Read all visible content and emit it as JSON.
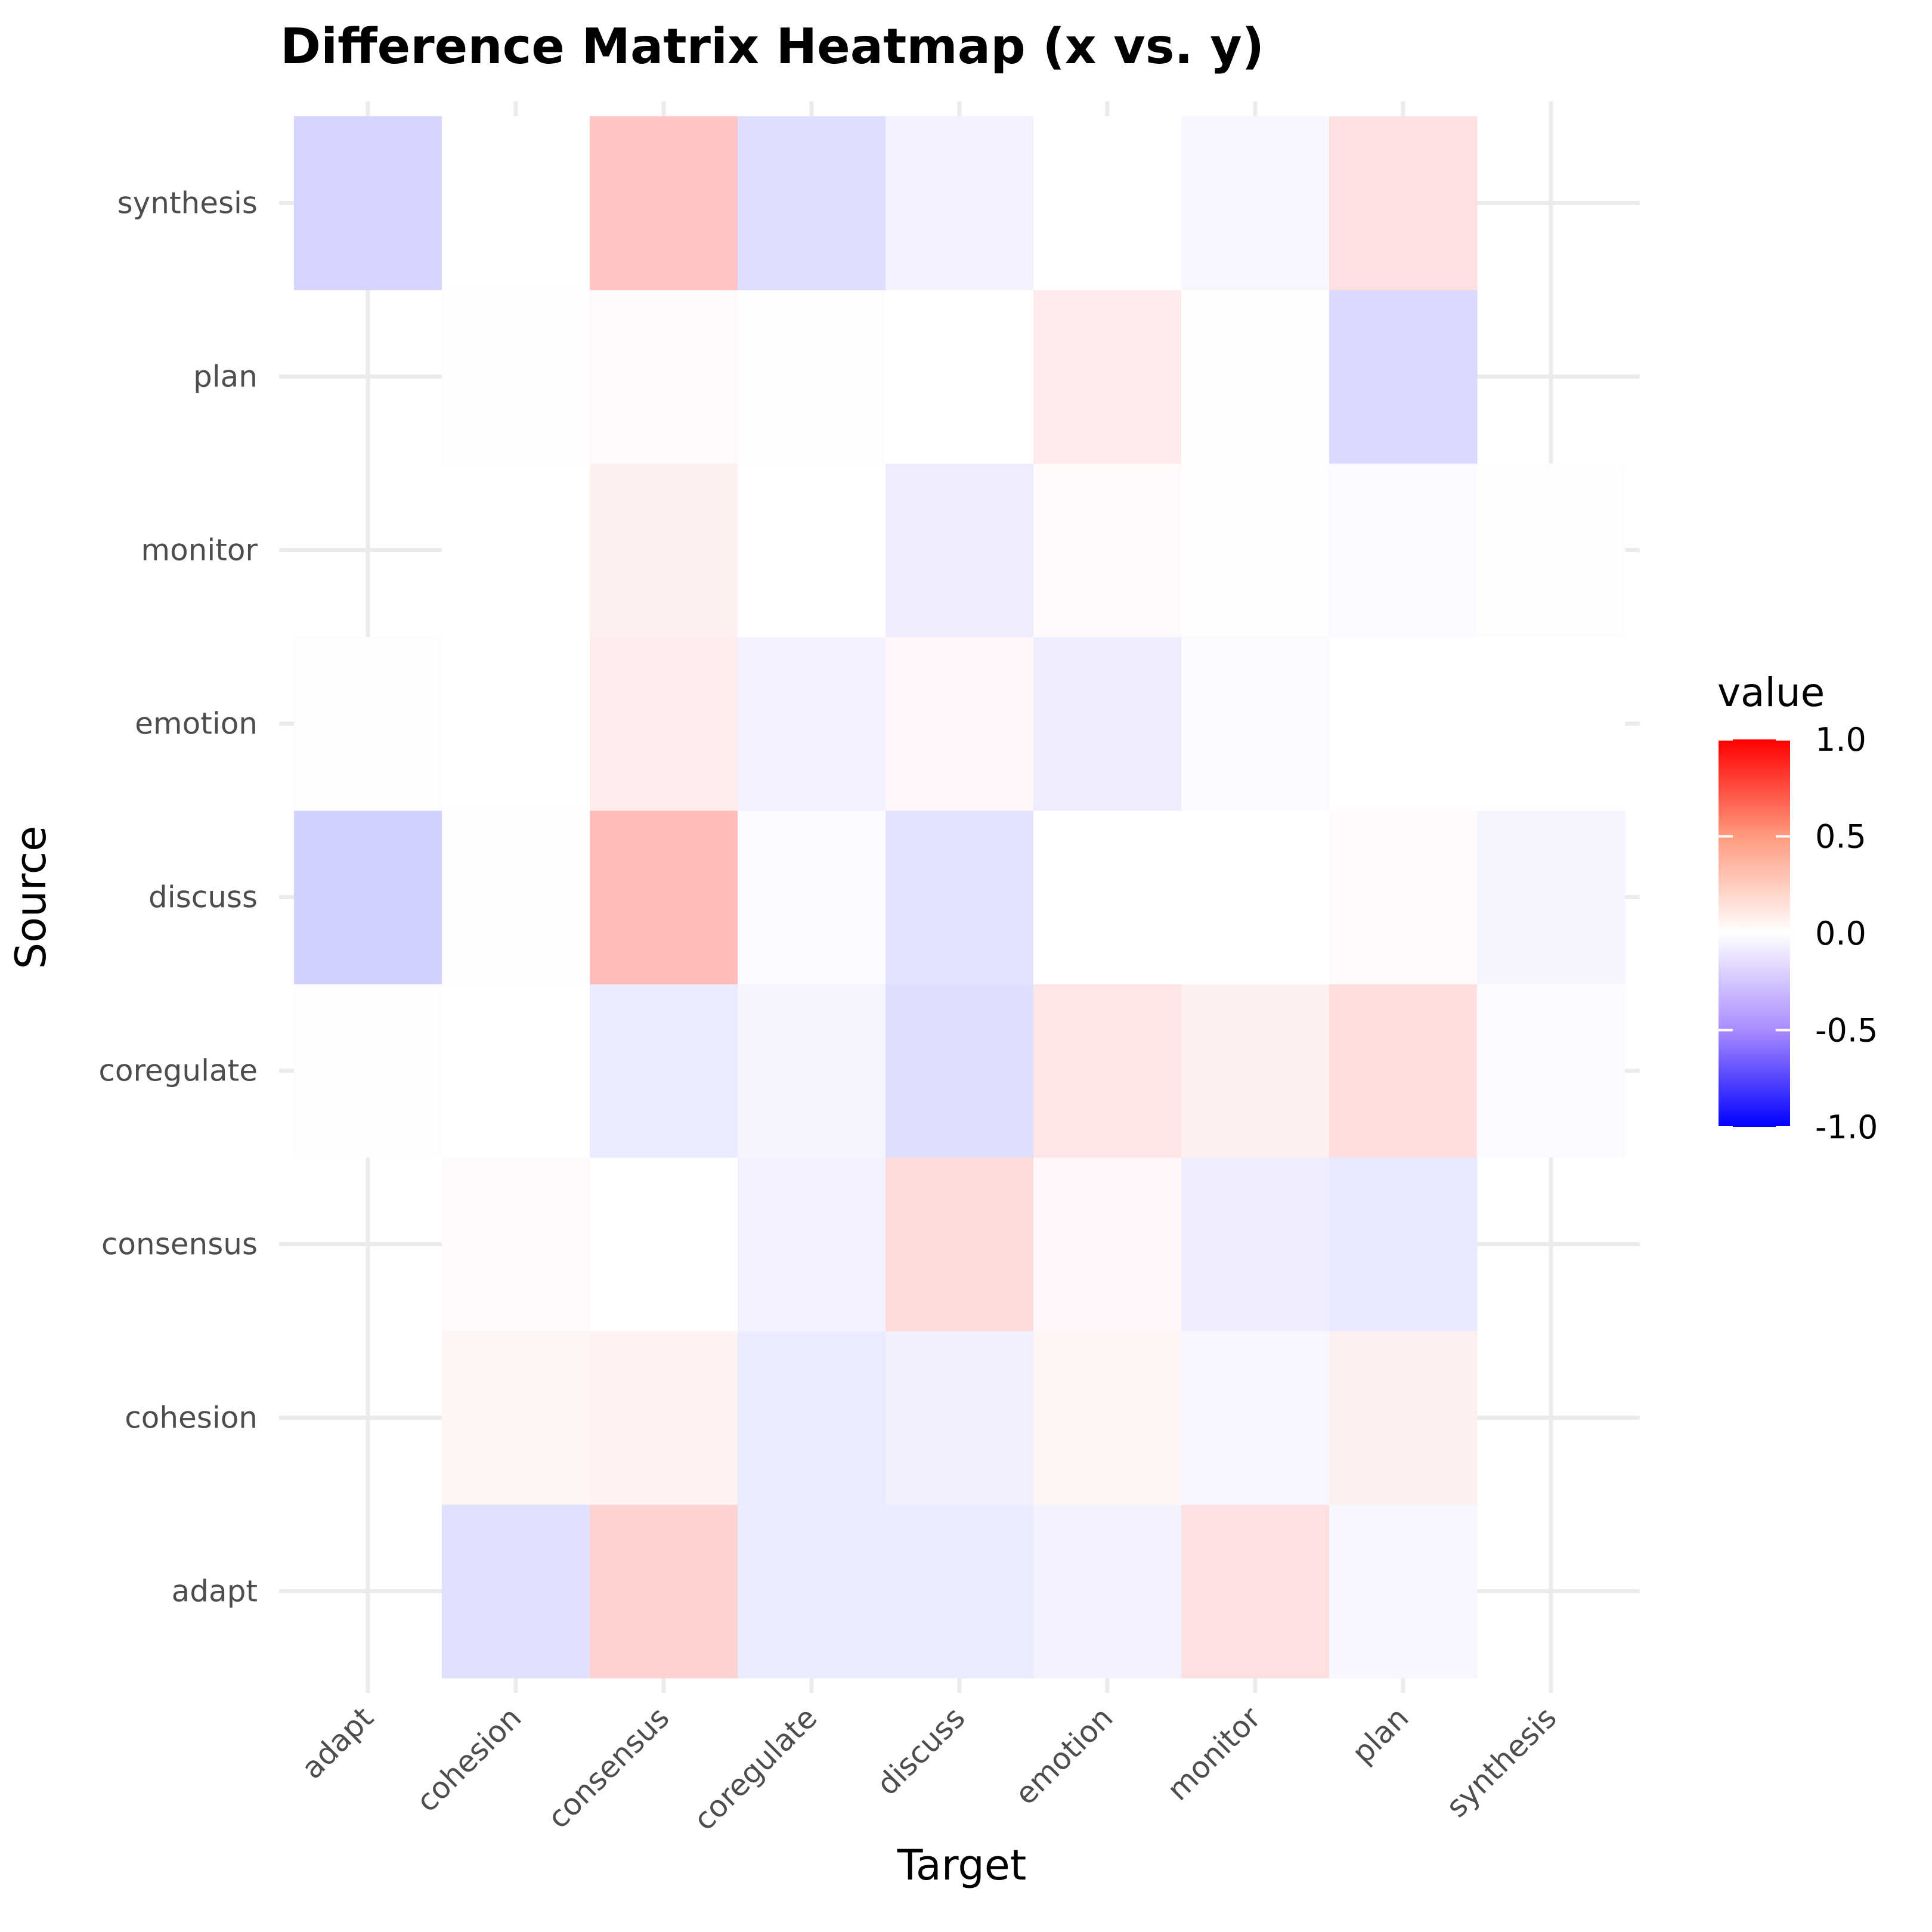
{
  "chart_data": {
    "type": "heatmap",
    "title": "Difference Matrix Heatmap (x vs. y)",
    "xlabel": "Target",
    "ylabel": "Source",
    "x_categories": [
      "adapt",
      "cohesion",
      "consensus",
      "coregulate",
      "discuss",
      "emotion",
      "monitor",
      "plan",
      "synthesis"
    ],
    "y_categories": [
      "adapt",
      "cohesion",
      "consensus",
      "coregulate",
      "discuss",
      "emotion",
      "monitor",
      "plan",
      "synthesis"
    ],
    "values": [
      [
        null,
        -0.12,
        0.18,
        -0.08,
        -0.08,
        -0.05,
        0.12,
        -0.03,
        null
      ],
      [
        null,
        0.04,
        0.05,
        -0.08,
        -0.06,
        0.04,
        -0.03,
        0.06,
        null
      ],
      [
        null,
        0.02,
        0.0,
        -0.05,
        0.14,
        0.03,
        -0.07,
        -0.09,
        null
      ],
      [
        0.01,
        0.0,
        -0.08,
        -0.04,
        -0.13,
        0.1,
        0.06,
        0.13,
        -0.02
      ],
      [
        -0.18,
        0.01,
        0.27,
        -0.02,
        -0.11,
        0.0,
        0.0,
        0.02,
        -0.04
      ],
      [
        0.01,
        0.0,
        0.07,
        -0.05,
        0.03,
        -0.07,
        -0.02,
        0.0,
        0.0
      ],
      [
        null,
        0.0,
        0.06,
        0.0,
        -0.07,
        0.02,
        0.01,
        -0.02,
        0.01
      ],
      [
        null,
        0.01,
        0.02,
        0.01,
        0.0,
        0.08,
        0.01,
        -0.15,
        null
      ],
      [
        -0.17,
        0.0,
        0.23,
        -0.13,
        -0.05,
        0.0,
        -0.03,
        0.12,
        null
      ]
    ],
    "color_scale": {
      "low": "#0000ff",
      "mid": "#ffffff",
      "high": "#ff0000",
      "limits": [
        -1,
        1
      ]
    },
    "legend": {
      "title": "value",
      "position": "right",
      "ticks": [
        {
          "value": 1.0,
          "label": "1.0"
        },
        {
          "value": 0.5,
          "label": "0.5"
        },
        {
          "value": 0.0,
          "label": "0.0"
        },
        {
          "value": -0.5,
          "label": "-0.5"
        },
        {
          "value": -1.0,
          "label": "-1.0"
        }
      ]
    },
    "grid": true,
    "background": "#ffffff",
    "grid_color": "#ebebeb"
  }
}
